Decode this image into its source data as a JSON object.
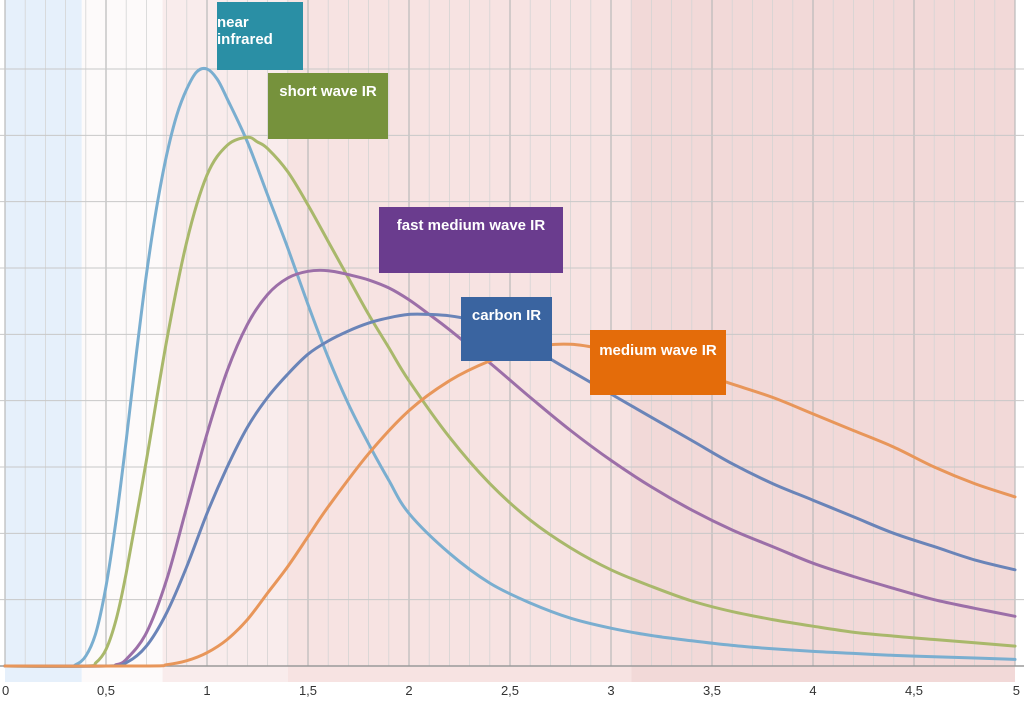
{
  "chart_data": {
    "type": "line",
    "title": "",
    "xlabel": "",
    "ylabel": "",
    "xlim": [
      0,
      5
    ],
    "ylim": [
      0,
      9
    ],
    "grid": true,
    "legend": "inline labels near curve peaks",
    "x_ticks": [
      "0",
      "0,5",
      "1",
      "1,5",
      "2",
      "2,5",
      "3",
      "3,5",
      "4",
      "4,5",
      "5"
    ],
    "background_bands": [
      {
        "from": 0.0,
        "to": 0.38,
        "color": "#e6f0fb"
      },
      {
        "from": 0.38,
        "to": 0.78,
        "color": "#fdfafa"
      },
      {
        "from": 0.78,
        "to": 1.4,
        "color": "#f9ecec"
      },
      {
        "from": 1.4,
        "to": 3.1,
        "color": "#f7e3e2"
      },
      {
        "from": 3.1,
        "to": 5.0,
        "color": "#f2d9d8"
      }
    ],
    "series": [
      {
        "name": "near infrared",
        "color": "#7aaed0",
        "label_color": "#2a8fa5",
        "x": [
          0.0,
          0.3,
          0.35,
          0.4,
          0.45,
          0.5,
          0.55,
          0.6,
          0.65,
          0.7,
          0.75,
          0.8,
          0.85,
          0.9,
          0.95,
          1.0,
          1.05,
          1.1,
          1.2,
          1.3,
          1.4,
          1.5,
          1.6,
          1.7,
          1.8,
          1.9,
          2.0,
          2.2,
          2.4,
          2.6,
          2.8,
          3.0,
          3.2,
          3.4,
          3.6,
          3.8,
          4.0,
          4.2,
          4.4,
          4.6,
          4.8,
          5.0
        ],
        "y": [
          0.0,
          0.0,
          0.02,
          0.15,
          0.5,
          1.2,
          2.2,
          3.4,
          4.7,
          5.9,
          6.9,
          7.7,
          8.3,
          8.7,
          8.96,
          9.0,
          8.85,
          8.55,
          7.9,
          7.1,
          6.3,
          5.45,
          4.65,
          3.95,
          3.35,
          2.8,
          2.3,
          1.7,
          1.25,
          0.95,
          0.72,
          0.57,
          0.46,
          0.38,
          0.31,
          0.26,
          0.22,
          0.19,
          0.16,
          0.14,
          0.12,
          0.1
        ]
      },
      {
        "name": "short wave IR",
        "color": "#a9b86b",
        "label_color": "#76923c",
        "x": [
          0.0,
          0.4,
          0.45,
          0.5,
          0.55,
          0.6,
          0.7,
          0.8,
          0.9,
          1.0,
          1.1,
          1.2,
          1.25,
          1.3,
          1.4,
          1.5,
          1.6,
          1.7,
          1.8,
          1.9,
          2.0,
          2.2,
          2.4,
          2.6,
          2.8,
          3.0,
          3.2,
          3.4,
          3.6,
          3.8,
          4.0,
          4.2,
          4.4,
          4.6,
          4.8,
          5.0
        ],
        "y": [
          0.0,
          0.0,
          0.05,
          0.25,
          0.7,
          1.4,
          3.1,
          4.9,
          6.4,
          7.4,
          7.85,
          7.97,
          7.9,
          7.8,
          7.45,
          6.95,
          6.4,
          5.85,
          5.3,
          4.8,
          4.3,
          3.45,
          2.75,
          2.2,
          1.78,
          1.45,
          1.2,
          0.98,
          0.82,
          0.7,
          0.6,
          0.51,
          0.45,
          0.4,
          0.35,
          0.3
        ]
      },
      {
        "name": "fast medium wave IR",
        "color": "#9c6fa8",
        "label_color": "#6a3c8e",
        "x": [
          0.0,
          0.5,
          0.55,
          0.6,
          0.7,
          0.8,
          0.9,
          1.0,
          1.1,
          1.2,
          1.3,
          1.4,
          1.5,
          1.6,
          1.7,
          1.8,
          1.9,
          2.0,
          2.1,
          2.2,
          2.4,
          2.6,
          2.8,
          3.0,
          3.2,
          3.4,
          3.6,
          3.8,
          4.0,
          4.2,
          4.4,
          4.6,
          4.8,
          5.0
        ],
        "y": [
          0.0,
          0.0,
          0.02,
          0.1,
          0.5,
          1.3,
          2.4,
          3.5,
          4.45,
          5.15,
          5.6,
          5.85,
          5.95,
          5.96,
          5.9,
          5.82,
          5.7,
          5.52,
          5.3,
          5.07,
          4.57,
          4.05,
          3.55,
          3.1,
          2.7,
          2.35,
          2.05,
          1.8,
          1.55,
          1.35,
          1.17,
          1.0,
          0.87,
          0.75
        ]
      },
      {
        "name": "carbon IR",
        "color": "#6a84b8",
        "label_color": "#3a64a0",
        "x": [
          0.0,
          0.5,
          0.6,
          0.7,
          0.8,
          0.9,
          1.0,
          1.1,
          1.2,
          1.3,
          1.4,
          1.5,
          1.6,
          1.7,
          1.8,
          1.9,
          2.0,
          2.1,
          2.2,
          2.3,
          2.4,
          2.6,
          2.8,
          3.0,
          3.2,
          3.4,
          3.6,
          3.8,
          4.0,
          4.2,
          4.4,
          4.6,
          4.8,
          5.0
        ],
        "y": [
          0.0,
          0.0,
          0.05,
          0.3,
          0.8,
          1.5,
          2.3,
          3.0,
          3.6,
          4.05,
          4.4,
          4.7,
          4.9,
          5.05,
          5.17,
          5.25,
          5.3,
          5.3,
          5.28,
          5.22,
          5.1,
          4.8,
          4.45,
          4.1,
          3.75,
          3.4,
          3.05,
          2.75,
          2.5,
          2.25,
          2.0,
          1.8,
          1.6,
          1.45
        ]
      },
      {
        "name": "medium wave IR",
        "color": "#e8965a",
        "label_color": "#e46c0a",
        "x": [
          0.0,
          0.7,
          0.8,
          0.9,
          1.0,
          1.1,
          1.2,
          1.3,
          1.4,
          1.5,
          1.6,
          1.8,
          2.0,
          2.2,
          2.4,
          2.6,
          2.8,
          3.0,
          3.2,
          3.4,
          3.6,
          3.8,
          4.0,
          4.2,
          4.4,
          4.6,
          4.8,
          5.0
        ],
        "y": [
          0.0,
          0.0,
          0.02,
          0.08,
          0.2,
          0.4,
          0.7,
          1.1,
          1.5,
          1.95,
          2.4,
          3.2,
          3.85,
          4.3,
          4.6,
          4.8,
          4.85,
          4.75,
          4.6,
          4.45,
          4.25,
          4.05,
          3.8,
          3.55,
          3.3,
          3.0,
          2.75,
          2.55
        ]
      }
    ],
    "labels": {
      "near_infrared": "near infrared",
      "short_wave_ir": "short wave IR",
      "fast_medium_wave_ir": "fast medium wave IR",
      "carbon_ir": "carbon IR",
      "medium_wave_ir": "medium wave IR"
    }
  }
}
